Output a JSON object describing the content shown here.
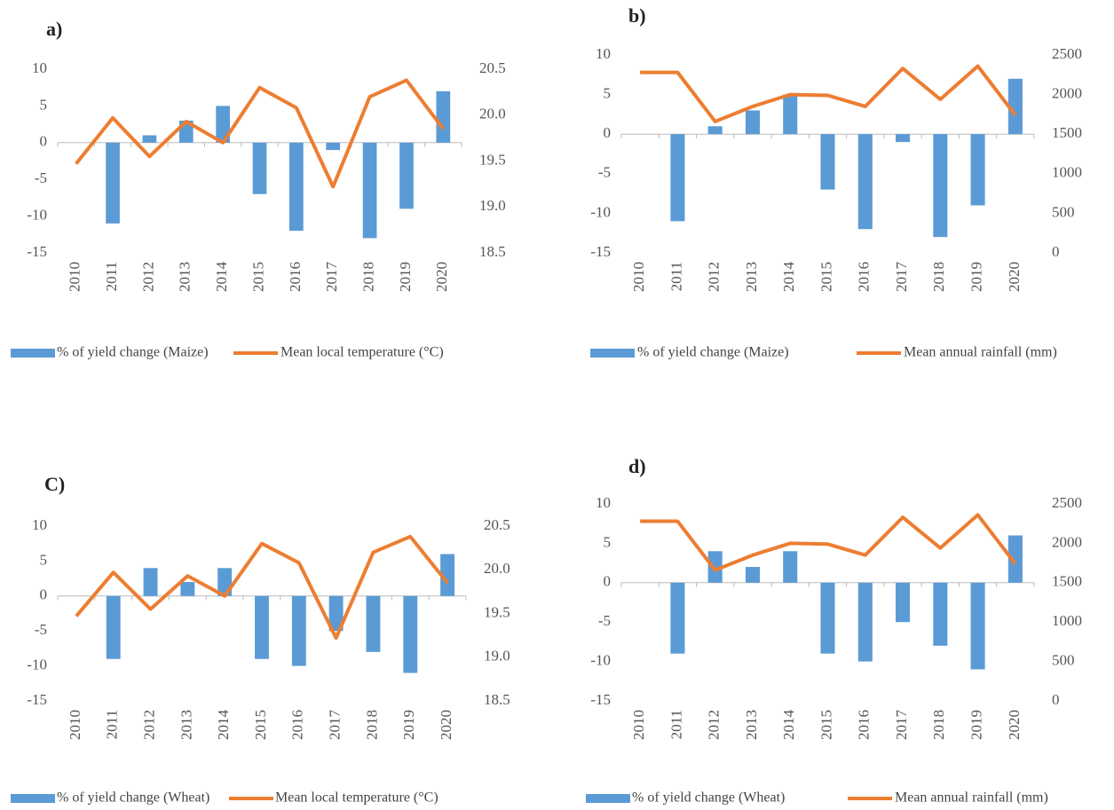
{
  "chart_data": [
    {
      "type": "bar-line",
      "title": "a)",
      "categories": [
        "2010",
        "2011",
        "2012",
        "2013",
        "2014",
        "2015",
        "2016",
        "2017",
        "2018",
        "2019",
        "2020"
      ],
      "series": [
        {
          "name": "% of yield change (Maize)",
          "color": "#5b9bd5",
          "values": [
            0,
            -11,
            1,
            3,
            5,
            -7,
            -12,
            -1,
            -13,
            -9,
            7
          ]
        },
        {
          "name": "Mean local temperature (°C)",
          "color": "#ed7d31",
          "axis": "y2",
          "values": [
            19.47,
            19.97,
            19.55,
            19.93,
            19.7,
            20.3,
            20.08,
            19.22,
            20.2,
            20.38,
            19.85
          ]
        }
      ],
      "ylim": [
        -15,
        10
      ],
      "yticks": [
        -15,
        -10,
        -5,
        0,
        5,
        10
      ],
      "y2lim": [
        18.5,
        20.5
      ],
      "y2ticks": [
        18.5,
        {
          "value": 19,
          "label": "19.0"
        },
        19.5,
        {
          "value": 20,
          "label": "20.0"
        },
        20.5
      ],
      "legend": "bottom"
    },
    {
      "type": "bar-line",
      "title": "b)",
      "categories": [
        "2010",
        "2011",
        "2012",
        "2013",
        "2014",
        "2015",
        "2016",
        "2017",
        "2018",
        "2019",
        "2020"
      ],
      "series": [
        {
          "name": "% of yield change (Maize)",
          "color": "#5b9bd5",
          "values": [
            0,
            -11,
            1,
            3,
            5,
            -7,
            -12,
            -1,
            -13,
            -9,
            7
          ]
        },
        {
          "name": "Mean annual rainfall (mm)",
          "color": "#ed7d31",
          "axis": "y2",
          "values": [
            2280,
            2280,
            1660,
            1850,
            2000,
            1990,
            1850,
            2330,
            1940,
            2360,
            1740
          ]
        }
      ],
      "ylim": [
        -15,
        10
      ],
      "yticks": [
        -15,
        -10,
        -5,
        0,
        5,
        10
      ],
      "y2lim": [
        0,
        2500
      ],
      "y2ticks": [
        0,
        500,
        1000,
        1500,
        2000,
        2500
      ],
      "legend": "bottom"
    },
    {
      "type": "bar-line",
      "title": "C)",
      "categories": [
        "2010",
        "2011",
        "2012",
        "2013",
        "2014",
        "2015",
        "2016",
        "2017",
        "2018",
        "2019",
        "2020"
      ],
      "series": [
        {
          "name": "% of yield change (Wheat)",
          "color": "#5b9bd5",
          "values": [
            0,
            -9,
            4,
            2,
            4,
            -9,
            -10,
            -5,
            -8,
            -11,
            6
          ]
        },
        {
          "name": "Mean local temperature (°C)",
          "color": "#ed7d31",
          "axis": "y2",
          "values": [
            19.47,
            19.97,
            19.55,
            19.93,
            19.7,
            20.3,
            20.08,
            19.22,
            20.2,
            20.38,
            19.85
          ]
        }
      ],
      "ylim": [
        -15,
        10
      ],
      "yticks": [
        -15,
        -10,
        -5,
        0,
        5,
        10
      ],
      "y2lim": [
        18.5,
        20.5
      ],
      "y2ticks": [
        18.5,
        {
          "value": 19,
          "label": "19.0"
        },
        19.5,
        {
          "value": 20,
          "label": "20.0"
        },
        20.5
      ],
      "legend": "bottom"
    },
    {
      "type": "bar-line",
      "title": "d)",
      "categories": [
        "2010",
        "2011",
        "2012",
        "2013",
        "2014",
        "2015",
        "2016",
        "2017",
        "2018",
        "2019",
        "2020"
      ],
      "series": [
        {
          "name": "% of yield change (Wheat)",
          "color": "#5b9bd5",
          "values": [
            0,
            -9,
            4,
            2,
            4,
            -9,
            -10,
            -5,
            -8,
            -11,
            6
          ]
        },
        {
          "name": "Mean annual rainfall (mm)",
          "color": "#ed7d31",
          "axis": "y2",
          "values": [
            2280,
            2280,
            1660,
            1850,
            2000,
            1990,
            1850,
            2330,
            1940,
            2360,
            1740
          ]
        }
      ],
      "ylim": [
        -15,
        10
      ],
      "yticks": [
        -15,
        -10,
        -5,
        0,
        5,
        10
      ],
      "y2lim": [
        0,
        2500
      ],
      "y2ticks": [
        0,
        500,
        1000,
        1500,
        2000,
        2500
      ],
      "legend": "bottom"
    }
  ]
}
